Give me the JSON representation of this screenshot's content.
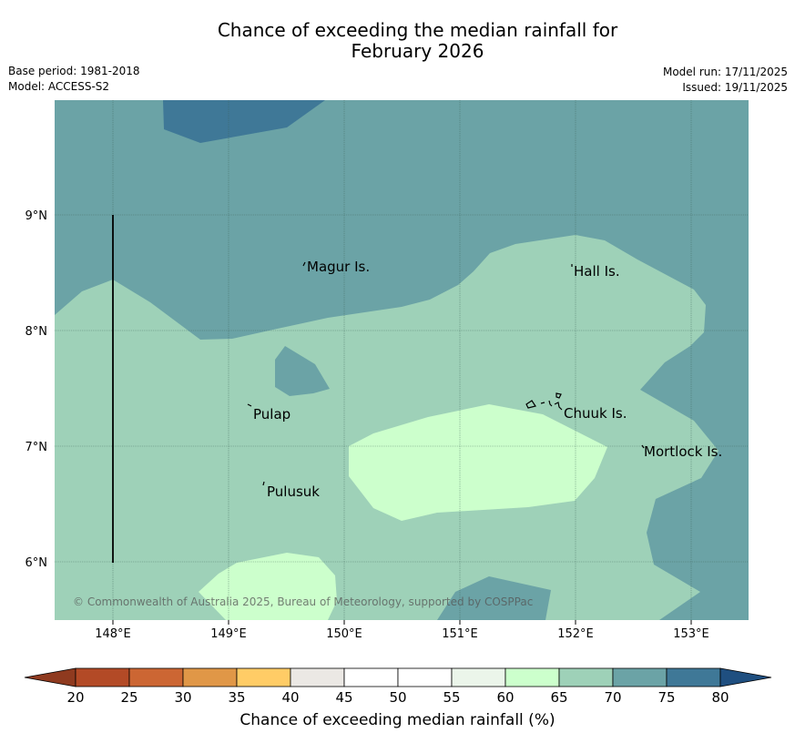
{
  "title": {
    "line1": "Chance of exceeding the median rainfall for",
    "line2": "February 2026"
  },
  "info_left": {
    "base_period": "Base period: 1981-2018",
    "model": "Model: ACCESS-S2"
  },
  "info_right": {
    "model_run": "Model run: 17/11/2025",
    "issued": "Issued: 19/11/2025"
  },
  "map": {
    "lon_labels": [
      "148°E",
      "149°E",
      "150°E",
      "151°E",
      "152°E",
      "153°E"
    ],
    "lat_labels": [
      "9°N",
      "8°N",
      "7°N",
      "6°N"
    ],
    "places": [
      {
        "name": "Magur Is."
      },
      {
        "name": "Hall Is."
      },
      {
        "name": "Pulap"
      },
      {
        "name": "Chuuk Is."
      },
      {
        "name": "Mortlock Is."
      },
      {
        "name": "Pulusuk"
      }
    ],
    "copyright": "© Commonwealth of Australia 2025, Bureau of Meteorology, supported by COSPPac"
  },
  "colorbar": {
    "ticks": [
      "20",
      "25",
      "30",
      "35",
      "40",
      "45",
      "50",
      "55",
      "60",
      "65",
      "70",
      "75",
      "80"
    ],
    "colors": [
      "#b34a26",
      "#cc6633",
      "#e09747",
      "#ffcc66",
      "#ebe8e4",
      "#ffffff",
      "#ffffff",
      "#ebf5ea",
      "#ccffcc",
      "#9ed1b8",
      "#6ba3a6",
      "#3f7897"
    ],
    "under_color": "#8f3a1f",
    "over_color": "#1f4f80",
    "label": "Chance of exceeding median rainfall (%)"
  },
  "colors": {
    "band_60_65": "#ccffcc",
    "band_65_70": "#9ed1b8",
    "band_70_75": "#6ba3a6",
    "band_75_80": "#3f7897"
  }
}
